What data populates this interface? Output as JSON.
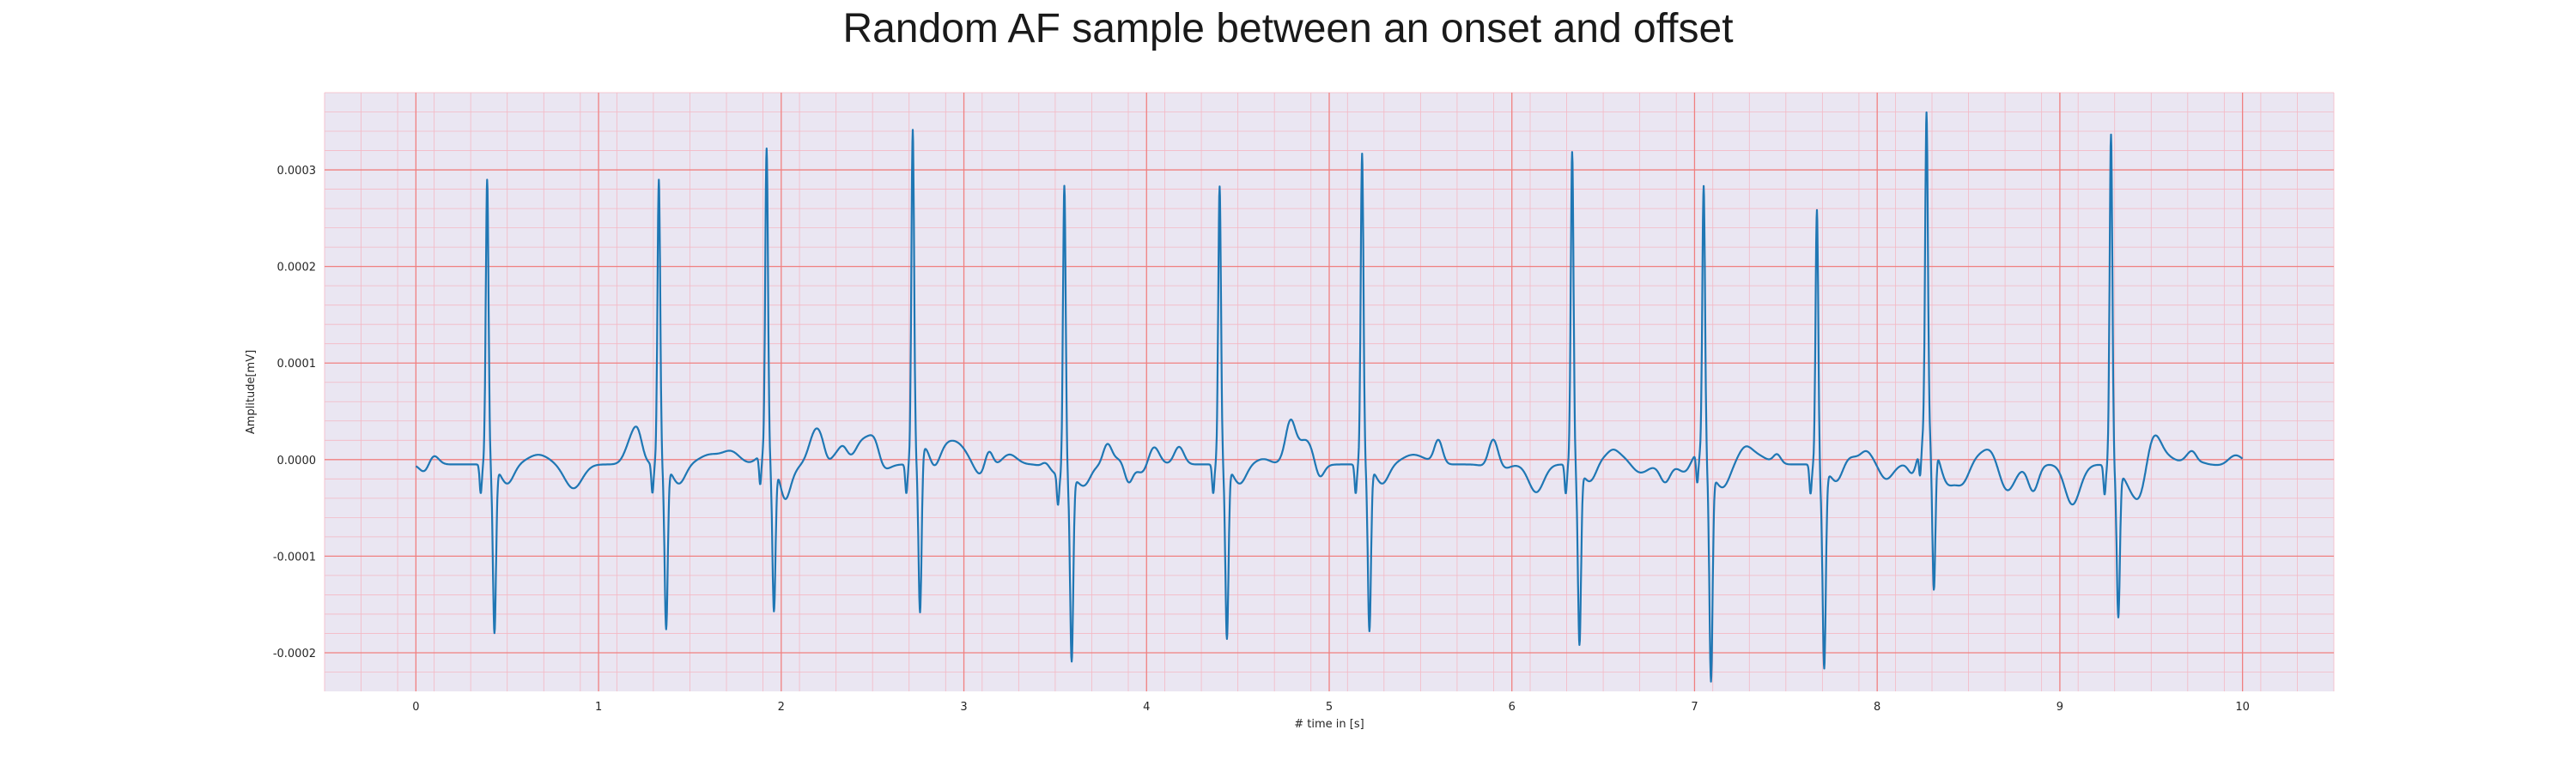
{
  "chart_data": {
    "type": "line",
    "title": "Random AF sample between an onset and offset",
    "xlabel": "# time in [s]",
    "ylabel": "Amplitude[mV]",
    "xlim": [
      -0.5,
      10.5
    ],
    "ylim": [
      -0.00024,
      0.00038
    ],
    "grid": true,
    "x_ticks": [
      0,
      1,
      2,
      3,
      4,
      5,
      6,
      7,
      8,
      9,
      10
    ],
    "x_tick_labels": [
      "0",
      "1",
      "2",
      "3",
      "4",
      "5",
      "6",
      "7",
      "8",
      "9",
      "10"
    ],
    "y_ticks": [
      -0.0002,
      -0.0001,
      0.0,
      0.0001,
      0.0002,
      0.0003
    ],
    "y_tick_labels": [
      "-0.0002",
      "-0.0001",
      "0.0000",
      "0.0001",
      "0.0002",
      "0.0003"
    ],
    "r_peaks": [
      {
        "t": 0.39,
        "r": 0.000295,
        "s": -0.000172
      },
      {
        "t": 1.33,
        "r": 0.000295,
        "s": -0.000168
      },
      {
        "t": 1.92,
        "r": 0.000318,
        "s": -0.000152
      },
      {
        "t": 2.72,
        "r": 0.000345,
        "s": -0.000165
      },
      {
        "t": 3.55,
        "r": 0.000305,
        "s": -0.000188
      },
      {
        "t": 4.4,
        "r": 0.000288,
        "s": -0.000178
      },
      {
        "t": 5.18,
        "r": 0.000322,
        "s": -0.00017
      },
      {
        "t": 6.33,
        "r": 0.000325,
        "s": -0.00018
      },
      {
        "t": 7.05,
        "r": 0.000285,
        "s": -0.000215
      },
      {
        "t": 7.67,
        "r": 0.000275,
        "s": -0.000192
      },
      {
        "t": 8.27,
        "r": 0.000332,
        "s": -0.000152
      },
      {
        "t": 9.28,
        "r": 0.000346,
        "s": -0.00015
      }
    ],
    "colors": {
      "line": "#1f77b4",
      "background": "#eae6f2",
      "major_grid": "#f08080",
      "minor_grid": "#f4b8c4"
    }
  }
}
